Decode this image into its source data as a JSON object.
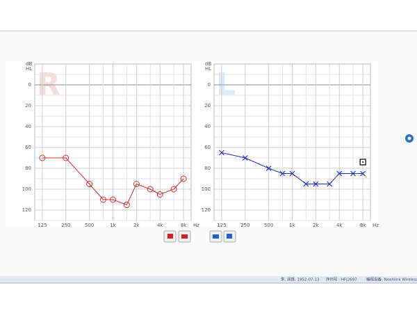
{
  "chart_data": [
    {
      "type": "line",
      "watermark": "R",
      "watermark_color": "#f6dcdc",
      "ylabel": [
        "dB",
        "HL"
      ],
      "xlabel": "Hz",
      "x": [
        125,
        250,
        500,
        750,
        1000,
        1500,
        2000,
        3000,
        4000,
        6000,
        8000
      ],
      "series": [
        {
          "color": "#d03030",
          "marker": "circle",
          "values": [
            70,
            70,
            95,
            110,
            110,
            115,
            95,
            100,
            105,
            100,
            90
          ]
        }
      ],
      "xscale": "log",
      "xlim": [
        100,
        10000
      ],
      "xticks": [
        125,
        250,
        500,
        {
          "value": 1000,
          "label": "1k"
        },
        {
          "value": 2000,
          "label": "2k"
        },
        {
          "value": 4000,
          "label": "4k"
        },
        {
          "value": 8000,
          "label": "8k"
        }
      ],
      "minor_xticks": [
        750,
        1500,
        3000,
        6000
      ],
      "ylim": [
        -20,
        130
      ],
      "y_inverted": true,
      "yticks": [
        0,
        20,
        40,
        60,
        80,
        100,
        120
      ],
      "minor_yticks": [
        -10,
        10,
        30,
        50,
        70,
        90,
        110,
        130
      ],
      "grid": true
    },
    {
      "type": "line",
      "watermark": "L",
      "watermark_color": "#dceaf6",
      "ylabel": [
        "dB",
        "HL"
      ],
      "xlabel": "Hz",
      "x": [
        125,
        250,
        500,
        750,
        1000,
        1500,
        2000,
        3000,
        4000,
        6000,
        8000
      ],
      "series": [
        {
          "color": "#2030c0",
          "marker": "cross",
          "values": [
            65,
            70,
            80,
            85,
            85,
            95,
            95,
            95,
            85,
            85,
            85
          ]
        }
      ],
      "symbols": [
        {
          "x": 8000,
          "y": 74
        }
      ],
      "xscale": "log",
      "xlim": [
        100,
        10000
      ],
      "xticks": [
        125,
        250,
        500,
        {
          "value": 1000,
          "label": "1k"
        },
        {
          "value": 2000,
          "label": "2k"
        },
        {
          "value": 4000,
          "label": "4k"
        },
        {
          "value": 8000,
          "label": "8k"
        }
      ],
      "minor_xticks": [
        750,
        1500,
        3000,
        6000
      ],
      "ylim": [
        -20,
        130
      ],
      "y_inverted": true,
      "yticks": [
        0,
        20,
        40,
        60,
        80,
        100,
        120
      ],
      "minor_yticks": [
        -10,
        10,
        30,
        50,
        70,
        90,
        110,
        130
      ],
      "grid": true
    }
  ],
  "status_bar": [
    "李, 润莲, 1952-07-13",
    "序列号 : HFJ2697",
    "编程设备: Noahlink Wireless"
  ]
}
